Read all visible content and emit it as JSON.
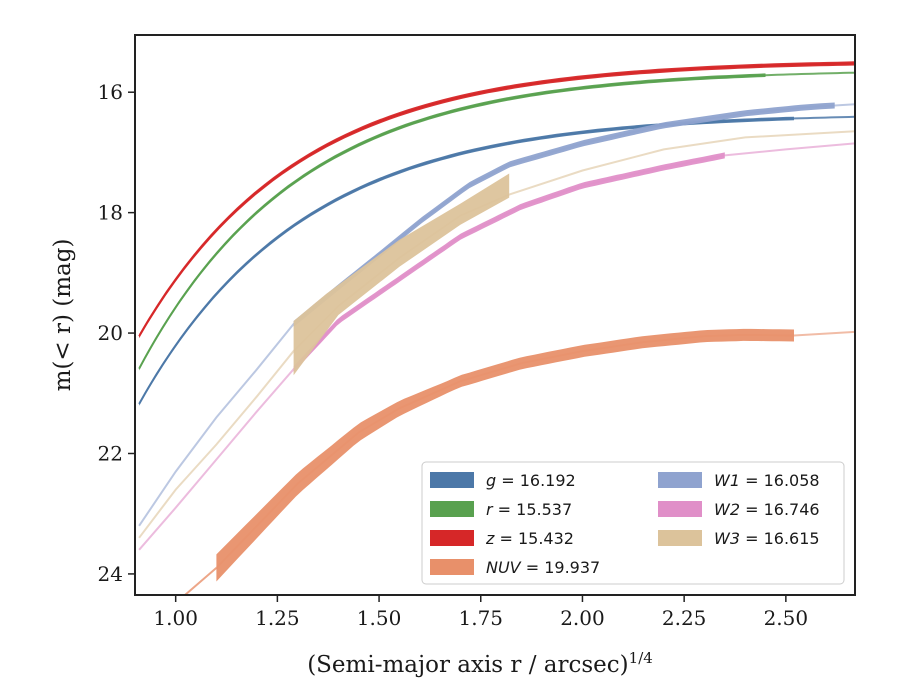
{
  "chart_data": {
    "type": "line",
    "xlabel": "(Semi-major axis r / arcsec)",
    "xlabel_superscript": "1/4",
    "ylabel": "m(< r) (mag)",
    "xlim": [
      0.9,
      2.67
    ],
    "ylim": [
      24.35,
      15.05
    ],
    "y_inverted": true,
    "grid": false,
    "legend_position": "lower-right",
    "xticks": [
      "1.00",
      "1.25",
      "1.50",
      "1.75",
      "2.00",
      "2.25",
      "2.50"
    ],
    "yticks": [
      "16",
      "18",
      "20",
      "22",
      "24"
    ],
    "series": [
      {
        "name": "g = 16.192",
        "color": "#4c78a8",
        "model": {
          "A": 16.35,
          "B": 4.95,
          "k": 2.5
        },
        "x_range": [
          0.91,
          2.67
        ],
        "band_range": [
          0.91,
          2.52
        ],
        "band_width": 0.06
      },
      {
        "name": "r = 15.537",
        "color": "#59a14f",
        "model": {
          "A": 15.62,
          "B": 5.1,
          "k": 2.55
        },
        "x_range": [
          0.91,
          2.67
        ],
        "band_range": [
          0.91,
          2.45
        ],
        "band_width": 0.06
      },
      {
        "name": "z = 15.432",
        "color": "#d62728",
        "model": {
          "A": 15.47,
          "B": 4.7,
          "k": 2.55
        },
        "x_range": [
          0.91,
          2.67
        ],
        "band_range": [
          0.91,
          2.67
        ],
        "band_width": 0.07
      },
      {
        "name": "NUV = 19.937",
        "color": "#e8906a",
        "points": [
          [
            1.1,
            23.9
          ],
          [
            1.3,
            22.5
          ],
          [
            1.45,
            21.65
          ],
          [
            1.55,
            21.25
          ],
          [
            1.7,
            20.8
          ],
          [
            1.85,
            20.5
          ],
          [
            2.0,
            20.3
          ],
          [
            2.15,
            20.15
          ],
          [
            2.3,
            20.05
          ],
          [
            2.4,
            20.03
          ],
          [
            2.52,
            20.04
          ],
          [
            2.67,
            19.98
          ]
        ],
        "line_start": [
          [
            0.98,
            24.6
          ],
          [
            1.1,
            23.9
          ]
        ],
        "band_range": [
          1.1,
          2.52
        ],
        "band_width": 0.2,
        "band_width_start": 0.45
      },
      {
        "name": "W1 = 16.058",
        "color": "#8fa3cf",
        "points": [
          [
            0.91,
            23.2
          ],
          [
            1.0,
            22.3
          ],
          [
            1.1,
            21.4
          ],
          [
            1.2,
            20.6
          ],
          [
            1.29,
            19.85
          ],
          [
            1.38,
            19.35
          ],
          [
            1.5,
            18.7
          ],
          [
            1.6,
            18.15
          ],
          [
            1.72,
            17.55
          ],
          [
            1.82,
            17.2
          ],
          [
            2.0,
            16.85
          ],
          [
            2.2,
            16.55
          ],
          [
            2.4,
            16.35
          ],
          [
            2.55,
            16.25
          ],
          [
            2.67,
            16.2
          ]
        ],
        "band_range": [
          1.29,
          2.62
        ],
        "band_width": 0.1
      },
      {
        "name": "W2 = 16.746",
        "color": "#e08fc8",
        "points": [
          [
            0.91,
            23.6
          ],
          [
            1.0,
            22.9
          ],
          [
            1.1,
            22.1
          ],
          [
            1.2,
            21.3
          ],
          [
            1.29,
            20.6
          ],
          [
            1.4,
            19.8
          ],
          [
            1.55,
            19.1
          ],
          [
            1.7,
            18.4
          ],
          [
            1.85,
            17.9
          ],
          [
            2.0,
            17.55
          ],
          [
            2.2,
            17.25
          ],
          [
            2.35,
            17.05
          ],
          [
            2.5,
            16.95
          ],
          [
            2.67,
            16.85
          ]
        ],
        "band_range": [
          1.29,
          2.35
        ],
        "band_width": 0.1
      },
      {
        "name": "W3 = 16.615",
        "color": "#dcc39b",
        "points": [
          [
            0.91,
            23.4
          ],
          [
            1.0,
            22.6
          ],
          [
            1.1,
            21.85
          ],
          [
            1.2,
            21.05
          ],
          [
            1.29,
            20.3
          ],
          [
            1.4,
            19.55
          ],
          [
            1.55,
            18.75
          ],
          [
            1.7,
            18.05
          ],
          [
            1.82,
            17.7
          ],
          [
            2.0,
            17.3
          ],
          [
            2.2,
            16.95
          ],
          [
            2.4,
            16.75
          ],
          [
            2.67,
            16.65
          ]
        ],
        "band_polygon": [
          [
            1.29,
            19.8
          ],
          [
            1.37,
            19.35
          ],
          [
            1.55,
            18.45
          ],
          [
            1.7,
            17.85
          ],
          [
            1.82,
            17.35
          ],
          [
            1.82,
            17.75
          ],
          [
            1.7,
            18.2
          ],
          [
            1.55,
            18.9
          ],
          [
            1.4,
            19.7
          ],
          [
            1.29,
            20.7
          ]
        ]
      }
    ]
  }
}
